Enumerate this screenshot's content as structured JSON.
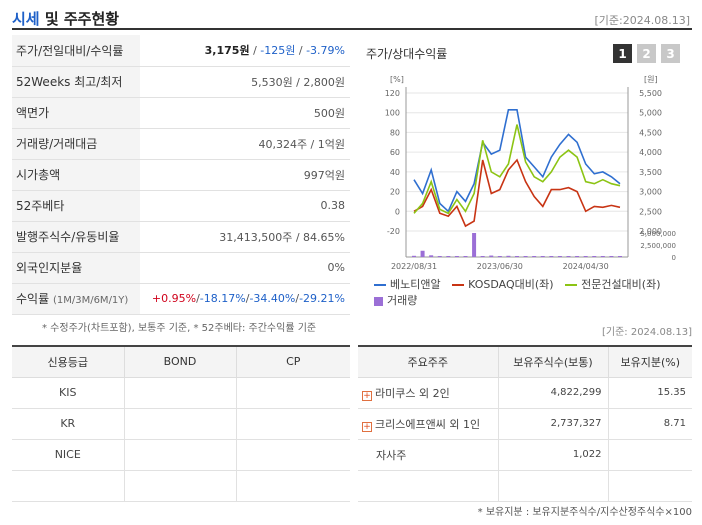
{
  "header": {
    "title_main": "시세",
    "title_rest": " 및 주주현황",
    "date": "[기준:2024.08.13]"
  },
  "info_rows": [
    {
      "label": "주가/전일대비/수익률",
      "price": "3,175원",
      "change": "-125원",
      "rate": "-3.79%"
    },
    {
      "label": "52Weeks 최고/최저",
      "value": "5,530원 / 2,800원"
    },
    {
      "label": "액면가",
      "value": "500원"
    },
    {
      "label": "거래량/거래대금",
      "value": "40,324주 / 1억원"
    },
    {
      "label": "시가총액",
      "value": "997억원"
    },
    {
      "label": "52주베타",
      "value": "0.38"
    },
    {
      "label": "발행주식수/유동비율",
      "value": "31,413,500주 / 84.65%"
    },
    {
      "label": "외국인지분율",
      "value": "0%"
    },
    {
      "label": "수익률",
      "label_sub": "(1M/3M/6M/1Y)",
      "r1": "+0.95%",
      "r2": "-18.17%",
      "r3": "-34.40%",
      "r4": "-29.21%"
    }
  ],
  "note1": "* 수정주가(차트포함), 보통주 기준, * 52주베타: 주간수익률 기준",
  "chart": {
    "title": "주가/상대수익률",
    "pages": [
      "1",
      "2",
      "3"
    ],
    "left_unit": "[%]",
    "right_unit": "[원]",
    "colors": {
      "price": "#2f6fd0",
      "kosdaq": "#c83414",
      "sector": "#8cc414",
      "volume": "#9b6fd6"
    },
    "legend": {
      "price": "베노티앤알",
      "kosdaq": "KOSDAQ대비(좌)",
      "sector": "전문건설대비(좌)",
      "volume": "거래량"
    }
  },
  "chart_data": {
    "type": "line",
    "x": [
      "2022/08",
      "2022/09",
      "2022/10",
      "2022/11",
      "2022/12",
      "2023/01",
      "2023/02",
      "2023/03",
      "2023/04",
      "2023/05",
      "2023/06",
      "2023/07",
      "2023/08",
      "2023/09",
      "2023/10",
      "2023/11",
      "2023/12",
      "2024/01",
      "2024/02",
      "2024/03",
      "2024/04",
      "2024/05",
      "2024/06",
      "2024/07",
      "2024/08"
    ],
    "x_tick_labels": [
      "2022/08/31",
      "2023/06/30",
      "2024/04/30"
    ],
    "y_left_ticks": [
      "120",
      "100",
      "80",
      "60",
      "40",
      "20",
      "0",
      "-20"
    ],
    "y_right_ticks": [
      "5,500",
      "5,000",
      "4,500",
      "4,000",
      "3,500",
      "3,000",
      "2,500",
      "2,000"
    ],
    "y_volume_ticks": [
      "5,000,000",
      "2,500,000",
      "0"
    ],
    "ylim_left": [
      -20,
      120
    ],
    "ylim_right": [
      2000,
      5500
    ],
    "volume_max": 5000000,
    "series": [
      {
        "name": "베노티앤알",
        "values": [
          32,
          18,
          42,
          8,
          0,
          20,
          10,
          28,
          70,
          58,
          62,
          103,
          103,
          55,
          45,
          35,
          55,
          68,
          78,
          70,
          48,
          38,
          40,
          35,
          28
        ]
      },
      {
        "name": "KOSDAQ대비(좌)",
        "values": [
          0,
          5,
          22,
          -2,
          -5,
          5,
          -15,
          -10,
          52,
          18,
          22,
          42,
          52,
          30,
          15,
          5,
          22,
          22,
          24,
          20,
          0,
          5,
          4,
          6,
          4
        ]
      },
      {
        "name": "전문건설대비(좌)",
        "values": [
          -2,
          8,
          30,
          2,
          -2,
          12,
          0,
          18,
          72,
          40,
          35,
          48,
          88,
          50,
          35,
          30,
          40,
          55,
          62,
          55,
          30,
          28,
          32,
          28,
          26
        ]
      },
      {
        "name": "거래량",
        "values": [
          250000,
          1300000,
          350000,
          120000,
          80000,
          150000,
          100000,
          5000000,
          200000,
          300000,
          200000,
          250000,
          150000,
          100000,
          100000,
          60000,
          90000,
          120000,
          100000,
          80000,
          60000,
          90000,
          100000,
          60000,
          40000
        ]
      }
    ]
  },
  "date2": "[기준: 2024.08.13]",
  "credit": {
    "headers": [
      "신용등급",
      "BOND",
      "CP"
    ],
    "rows": [
      {
        "agency": "KIS",
        "bond": "",
        "cp": ""
      },
      {
        "agency": "KR",
        "bond": "",
        "cp": ""
      },
      {
        "agency": "NICE",
        "bond": "",
        "cp": ""
      },
      {
        "agency": "",
        "bond": "",
        "cp": ""
      }
    ]
  },
  "holders": {
    "headers": [
      "주요주주",
      "보유주식수(보통)",
      "보유지분(%)"
    ],
    "rows": [
      {
        "name": "라미쿠스 외 2인",
        "shares": "4,822,299",
        "pct": "15.35",
        "expand": true
      },
      {
        "name": "크리스에프앤씨 외 1인",
        "shares": "2,737,327",
        "pct": "8.71",
        "expand": true
      },
      {
        "name": "자사주",
        "shares": "1,022",
        "pct": "",
        "expand": false
      },
      {
        "name": "",
        "shares": "",
        "pct": "",
        "expand": false
      }
    ]
  },
  "note2": "* 보유지분 : 보유지분주식수/지수산정주식수×100"
}
